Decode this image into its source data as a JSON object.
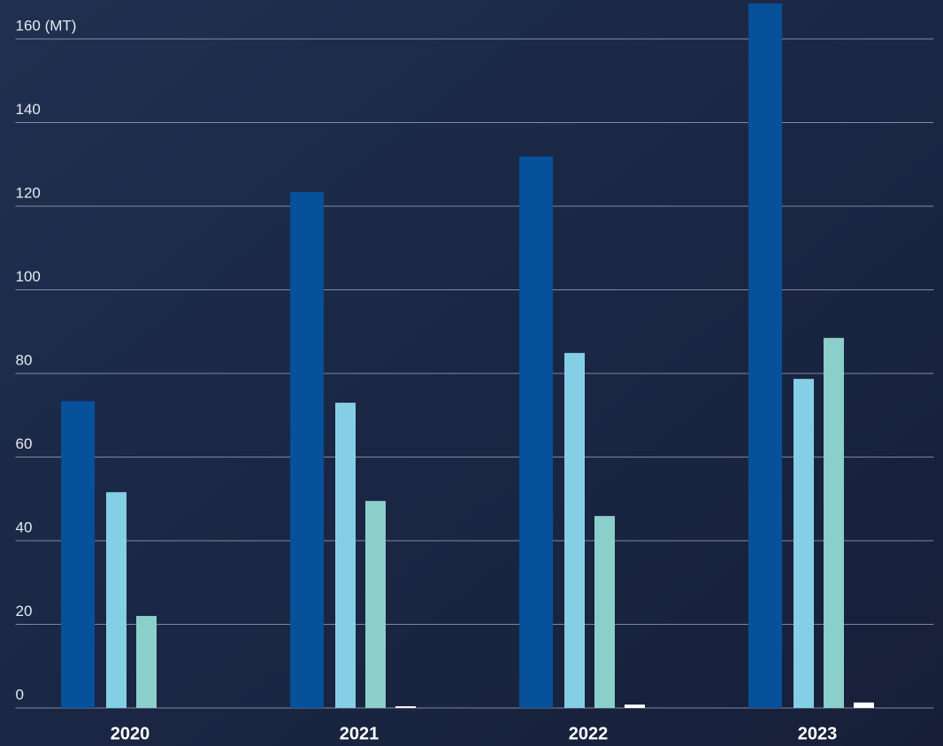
{
  "chart_data": {
    "type": "bar",
    "categories": [
      "2020",
      "2021",
      "2022",
      "2023"
    ],
    "series": [
      {
        "color": "#07509a",
        "values": [
          73.4,
          123.4,
          131.9,
          168.5
        ]
      },
      {
        "color": "#85cfe6",
        "values": [
          51.6,
          73.0,
          84.9,
          78.7
        ]
      },
      {
        "color": "#8bcfcb",
        "values": [
          22.0,
          49.5,
          45.9,
          88.5
        ]
      },
      {
        "color": "#ffffff",
        "values": [
          null,
          0.4,
          0.8,
          1.3
        ]
      }
    ],
    "ylim": [
      0,
      169
    ],
    "yticks": [
      0,
      20,
      40,
      60,
      80,
      100,
      120,
      140,
      {
        "value": 160,
        "label": "160 (MT)"
      }
    ],
    "grid": true
  }
}
